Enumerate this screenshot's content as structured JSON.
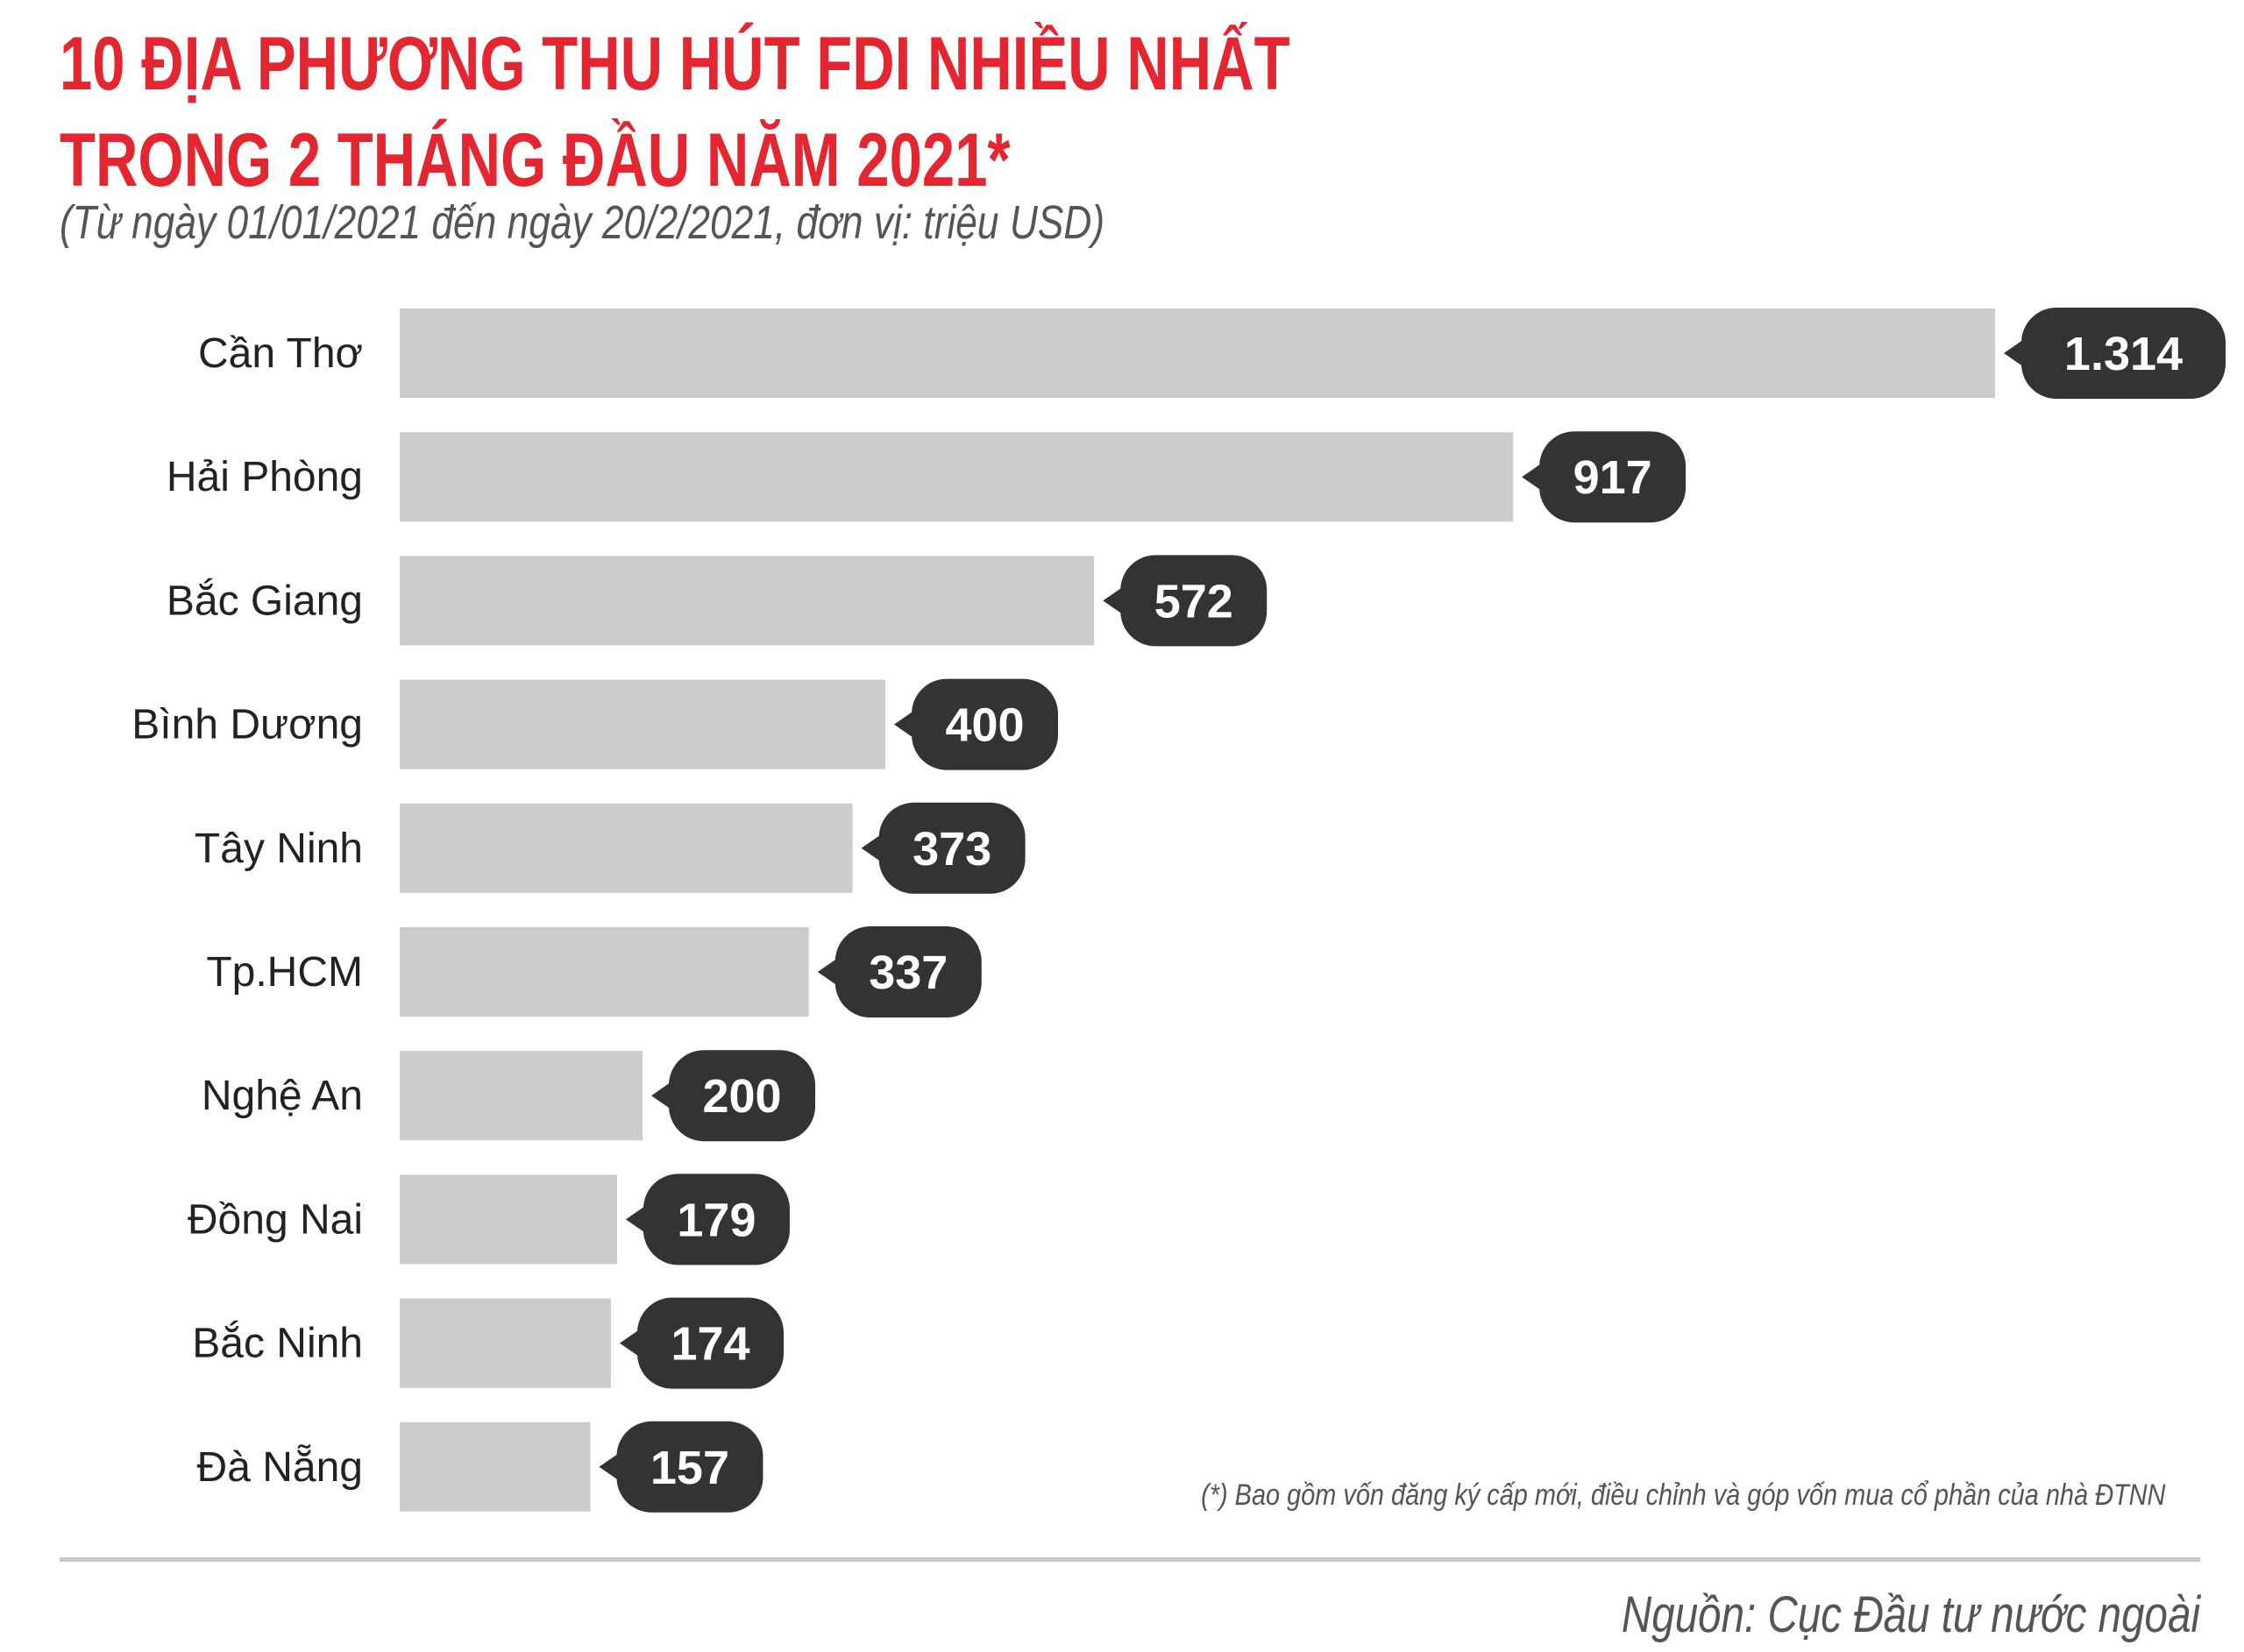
{
  "header": {
    "title_line1": "10 ĐỊA PHƯƠNG THU HÚT FDI NHIỀU NHẤT",
    "title_line2": "TRONG 2 THÁNG ĐẦU NĂM 2021*",
    "subtitle": "(Từ ngày 01/01/2021 đến ngày 20/2/2021, đơn vị: triệu USD)"
  },
  "footnote": "(*) Bao gồm vốn đăng ký cấp mới, điều chỉnh và góp vốn mua cổ phần của nhà ĐTNN",
  "source": "Nguồn: Cục Đầu tư nước ngoài",
  "colors": {
    "title": "#e3262f",
    "bar": "#cccccc",
    "value_badge": "#333333",
    "value_text": "#ffffff",
    "divider": "#c9c9c9"
  },
  "chart_data": {
    "type": "bar",
    "orientation": "horizontal",
    "title": "10 ĐỊA PHƯƠNG THU HÚT FDI NHIỀU NHẤT TRONG 2 THÁNG ĐẦU NĂM 2021*",
    "subtitle": "(Từ ngày 01/01/2021 đến ngày 20/2/2021, đơn vị: triệu USD)",
    "categories": [
      "Cần Thơ",
      "Hải Phòng",
      "Bắc Giang",
      "Bình Dương",
      "Tây Ninh",
      "Tp.HCM",
      "Nghệ An",
      "Đồng Nai",
      "Bắc Ninh",
      "Đà Nẵng"
    ],
    "values": [
      1314,
      917,
      572,
      400,
      373,
      337,
      200,
      179,
      174,
      157
    ],
    "value_labels": [
      "1.314",
      "917",
      "572",
      "400",
      "373",
      "337",
      "200",
      "179",
      "174",
      "157"
    ],
    "xlabel": "",
    "ylabel": "",
    "xlim": [
      0,
      1314
    ],
    "grid": false,
    "legend": "none"
  }
}
